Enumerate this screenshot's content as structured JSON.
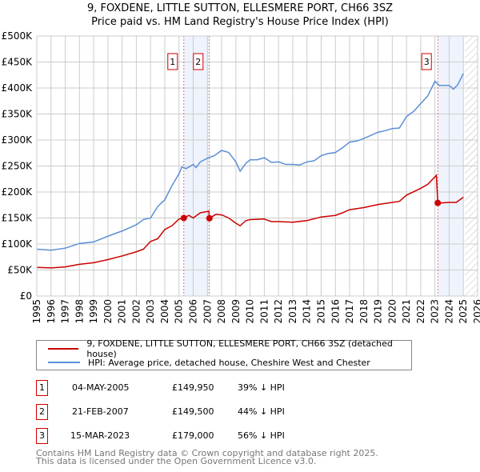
{
  "chart_data": {
    "type": "line",
    "title": "9, FOXDENE, LITTLE SUTTON, ELLESMERE PORT, CH66 3SZ",
    "subtitle": "Price paid vs. HM Land Registry's House Price Index (HPI)",
    "xlim": [
      1995,
      2026
    ],
    "ylim": [
      0,
      500000
    ],
    "x_ticks": [
      "1995",
      "1996",
      "1997",
      "1998",
      "1999",
      "2000",
      "2001",
      "2002",
      "2003",
      "2004",
      "2005",
      "2006",
      "2007",
      "2008",
      "2009",
      "2010",
      "2011",
      "2012",
      "2013",
      "2014",
      "2015",
      "2016",
      "2017",
      "2018",
      "2019",
      "2020",
      "2021",
      "2022",
      "2023",
      "2024",
      "2025",
      "2026"
    ],
    "y_ticks": [
      {
        "v": 0,
        "l": "£0"
      },
      {
        "v": 50000,
        "l": "£50K"
      },
      {
        "v": 100000,
        "l": "£100K"
      },
      {
        "v": 150000,
        "l": "£150K"
      },
      {
        "v": 200000,
        "l": "£200K"
      },
      {
        "v": 250000,
        "l": "£250K"
      },
      {
        "v": 300000,
        "l": "£300K"
      },
      {
        "v": 350000,
        "l": "£350K"
      },
      {
        "v": 400000,
        "l": "£400K"
      },
      {
        "v": 450000,
        "l": "£450K"
      },
      {
        "v": 500000,
        "l": "£500K"
      }
    ],
    "grid": true,
    "series": [
      {
        "name": "9, FOXDENE, LITTLE SUTTON, ELLESMERE PORT, CH66 3SZ (detached house)",
        "color": "#cc0000",
        "points": [
          [
            1995,
            55000
          ],
          [
            1996,
            54000
          ],
          [
            1997,
            56000
          ],
          [
            1998,
            61000
          ],
          [
            1999,
            64000
          ],
          [
            2000,
            70000
          ],
          [
            2001,
            77000
          ],
          [
            2002,
            85000
          ],
          [
            2002.5,
            90000
          ],
          [
            2003,
            105000
          ],
          [
            2003.5,
            110000
          ],
          [
            2004,
            128000
          ],
          [
            2004.5,
            135000
          ],
          [
            2005,
            148000
          ],
          [
            2005.34,
            149950
          ],
          [
            2005.7,
            155000
          ],
          [
            2006,
            150000
          ],
          [
            2006.5,
            160000
          ],
          [
            2007.1,
            163000
          ],
          [
            2007.14,
            149500
          ],
          [
            2007.6,
            157000
          ],
          [
            2008,
            156000
          ],
          [
            2008.5,
            150000
          ],
          [
            2009,
            140000
          ],
          [
            2009.3,
            135000
          ],
          [
            2009.7,
            145000
          ],
          [
            2010,
            147000
          ],
          [
            2011,
            148000
          ],
          [
            2011.5,
            143000
          ],
          [
            2012,
            143000
          ],
          [
            2013,
            142000
          ],
          [
            2014,
            145000
          ],
          [
            2015,
            152000
          ],
          [
            2016,
            155000
          ],
          [
            2016.5,
            160000
          ],
          [
            2017,
            166000
          ],
          [
            2018,
            170000
          ],
          [
            2019,
            176000
          ],
          [
            2020,
            180000
          ],
          [
            2020.5,
            182000
          ],
          [
            2021,
            194000
          ],
          [
            2022,
            207000
          ],
          [
            2022.5,
            215000
          ],
          [
            2023.1,
            232000
          ],
          [
            2023.2,
            179000
          ],
          [
            2023.5,
            179000
          ],
          [
            2024,
            180000
          ],
          [
            2024.5,
            180000
          ],
          [
            2025,
            190000
          ]
        ]
      },
      {
        "name": "HPI: Average price, detached house, Cheshire West and Chester",
        "color": "#5b8fd4",
        "points": [
          [
            1995,
            90000
          ],
          [
            1996,
            88000
          ],
          [
            1997,
            92000
          ],
          [
            1998,
            101000
          ],
          [
            1999,
            104000
          ],
          [
            2000,
            115000
          ],
          [
            2001,
            125000
          ],
          [
            2002,
            137000
          ],
          [
            2002.5,
            147000
          ],
          [
            2003,
            150000
          ],
          [
            2003.5,
            172000
          ],
          [
            2004,
            185000
          ],
          [
            2004.5,
            212000
          ],
          [
            2005,
            235000
          ],
          [
            2005.2,
            248000
          ],
          [
            2005.5,
            245000
          ],
          [
            2006,
            253000
          ],
          [
            2006.2,
            247000
          ],
          [
            2006.5,
            258000
          ],
          [
            2007,
            265000
          ],
          [
            2007.5,
            270000
          ],
          [
            2008,
            280000
          ],
          [
            2008.5,
            276000
          ],
          [
            2009,
            258000
          ],
          [
            2009.3,
            240000
          ],
          [
            2009.7,
            255000
          ],
          [
            2010,
            262000
          ],
          [
            2010.5,
            262000
          ],
          [
            2011,
            266000
          ],
          [
            2011.5,
            257000
          ],
          [
            2012,
            258000
          ],
          [
            2012.5,
            253000
          ],
          [
            2013,
            253000
          ],
          [
            2013.5,
            252000
          ],
          [
            2014,
            258000
          ],
          [
            2014.5,
            260000
          ],
          [
            2015,
            270000
          ],
          [
            2015.5,
            274000
          ],
          [
            2016,
            276000
          ],
          [
            2016.5,
            285000
          ],
          [
            2017,
            296000
          ],
          [
            2017.5,
            298000
          ],
          [
            2018,
            303000
          ],
          [
            2018.5,
            309000
          ],
          [
            2019,
            315000
          ],
          [
            2019.5,
            318000
          ],
          [
            2020,
            322000
          ],
          [
            2020.5,
            323000
          ],
          [
            2021,
            345000
          ],
          [
            2021.5,
            355000
          ],
          [
            2022,
            370000
          ],
          [
            2022.5,
            385000
          ],
          [
            2023,
            413000
          ],
          [
            2023.3,
            405000
          ],
          [
            2023.7,
            405000
          ],
          [
            2024,
            405000
          ],
          [
            2024.3,
            398000
          ],
          [
            2024.6,
            406000
          ],
          [
            2025,
            428000
          ]
        ]
      }
    ],
    "sales": [
      {
        "label": "1",
        "x": 2005.34,
        "y": 149950
      },
      {
        "label": "2",
        "x": 2007.14,
        "y": 149500
      },
      {
        "label": "3",
        "x": 2023.2,
        "y": 179000
      }
    ],
    "shaded_ranges": [
      [
        2005.34,
        2007.14
      ],
      [
        2023.2,
        2025.0
      ]
    ],
    "forecast_from": 2025.1
  },
  "legend": {
    "red": "9, FOXDENE, LITTLE SUTTON, ELLESMERE PORT, CH66 3SZ (detached house)",
    "blue": "HPI: Average price, detached house, Cheshire West and Chester"
  },
  "transactions": [
    {
      "num": "1",
      "date": "04-MAY-2005",
      "price": "£149,950",
      "hpi": "39% ↓ HPI"
    },
    {
      "num": "2",
      "date": "21-FEB-2007",
      "price": "£149,500",
      "hpi": "44% ↓ HPI"
    },
    {
      "num": "3",
      "date": "15-MAR-2023",
      "price": "£179,000",
      "hpi": "56% ↓ HPI"
    }
  ],
  "footer": {
    "line1": "Contains HM Land Registry data © Crown copyright and database right 2025.",
    "line2": "This data is licensed under the Open Government Licence v3.0."
  }
}
